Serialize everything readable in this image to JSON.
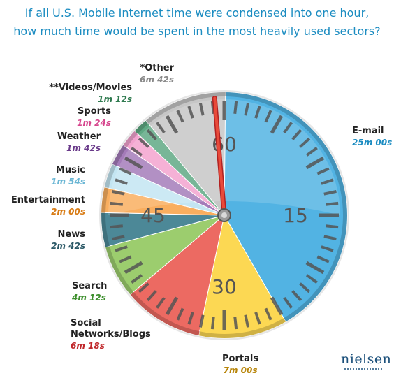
{
  "title": {
    "line1": "If all U.S. Mobile Internet time were condensed into one hour,",
    "line2": "how much time  would be spent in the most heavily used sectors?"
  },
  "chart_data": {
    "type": "pie",
    "unit": "seconds",
    "total": 3600,
    "dial_labels": [
      "60",
      "15",
      "30",
      "45"
    ],
    "slices": [
      {
        "label": "E-mail",
        "display": "25m 00s",
        "value": 1500,
        "color": "#52b3e3",
        "label_color": "#1b8cc1"
      },
      {
        "label": "Portals",
        "display": "7m 00s",
        "value": 420,
        "color": "#fcd853",
        "label_color": "#b8860b"
      },
      {
        "label": "Social Networks/Blogs",
        "name_line1": "Social",
        "name_line2": "Networks/Blogs",
        "display": "6m 18s",
        "value": 378,
        "color": "#ec6a62",
        "label_color": "#c0282b"
      },
      {
        "label": "Search",
        "display": "4m 12s",
        "value": 252,
        "color": "#9ccd6e",
        "label_color": "#3d8f2d"
      },
      {
        "label": "News",
        "display": "2m 42s",
        "value": 162,
        "color": "#4c8897",
        "label_color": "#2a5866"
      },
      {
        "label": "Entertainment",
        "display": "2m 00s",
        "value": 120,
        "color": "#f9ae5f",
        "label_color": "#d87b14"
      },
      {
        "label": "Music",
        "display": "1m 54s",
        "value": 114,
        "color": "#c3e5f2",
        "label_color": "#6ab6d4"
      },
      {
        "label": "Weather",
        "display": "1m 42s",
        "value": 102,
        "color": "#a47bb9",
        "label_color": "#6a3a8a"
      },
      {
        "label": "Sports",
        "display": "1m 24s",
        "value": 84,
        "color": "#f3a3cf",
        "label_color": "#d6458d"
      },
      {
        "label": "**Videos/Movies",
        "display": "1m 12s",
        "value": 72,
        "color": "#5fa983",
        "label_color": "#2f7a4f"
      },
      {
        "label": "*Other",
        "display": "6m 42s",
        "value": 402,
        "color": "#c6c6c6",
        "label_color": "#888888"
      }
    ]
  },
  "labels": {
    "email": {
      "name": "E-mail",
      "value": "25m 00s"
    },
    "portals": {
      "name": "Portals",
      "value": "7m 00s"
    },
    "social": {
      "name1": "Social",
      "name2": "Networks/Blogs",
      "value": "6m 18s"
    },
    "search": {
      "name": "Search",
      "value": "4m 12s"
    },
    "news": {
      "name": "News",
      "value": "2m 42s"
    },
    "entertainment": {
      "name": "Entertainment",
      "value": "2m 00s"
    },
    "music": {
      "name": "Music",
      "value": "1m 54s"
    },
    "weather": {
      "name": "Weather",
      "value": "1m 42s"
    },
    "sports": {
      "name": "Sports",
      "value": "1m 24s"
    },
    "videos": {
      "name": "**Videos/Movies",
      "value": "1m 12s"
    },
    "other": {
      "name": "*Other",
      "value": "6m 42s"
    }
  },
  "logo": {
    "text": "nielsen"
  }
}
